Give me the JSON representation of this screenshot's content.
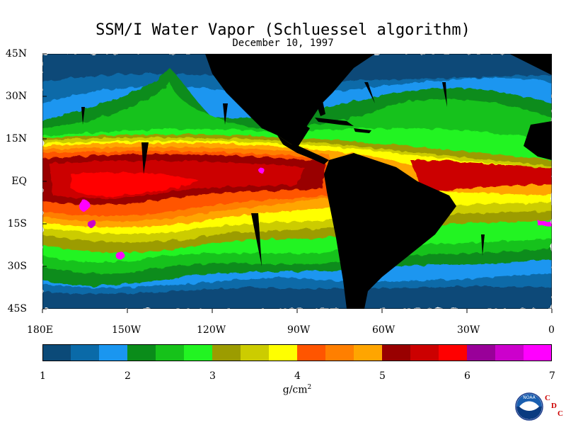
{
  "title": "SSM/I Water Vapor (Schluessel algorithm)",
  "subtitle": "December 10, 1997",
  "y_axis_labels": [
    "45N",
    "30N",
    "15N",
    "EQ",
    "15S",
    "30S",
    "45S"
  ],
  "x_axis_labels": [
    "180E",
    "150W",
    "120W",
    "90W",
    "60W",
    "30W",
    "0"
  ],
  "colorbar": {
    "colors": [
      "#0b4a78",
      "#0a6aa8",
      "#1a96f0",
      "#0a8c1a",
      "#16c21a",
      "#22f422",
      "#9c9c00",
      "#cccc00",
      "#ffff00",
      "#ff5500",
      "#ff7f00",
      "#ffa500",
      "#990000",
      "#cc0000",
      "#ff0000",
      "#990099",
      "#cc00cc",
      "#ff00ff"
    ],
    "tick_labels": [
      "1",
      "2",
      "3",
      "4",
      "5",
      "6",
      "7"
    ],
    "range": [
      1,
      7
    ],
    "units": "g/cm",
    "units_sup": "2"
  },
  "logo": {
    "name": "noaa-logo",
    "text": "NOAA",
    "cdc_letters": [
      "C",
      "D",
      "C"
    ]
  }
}
